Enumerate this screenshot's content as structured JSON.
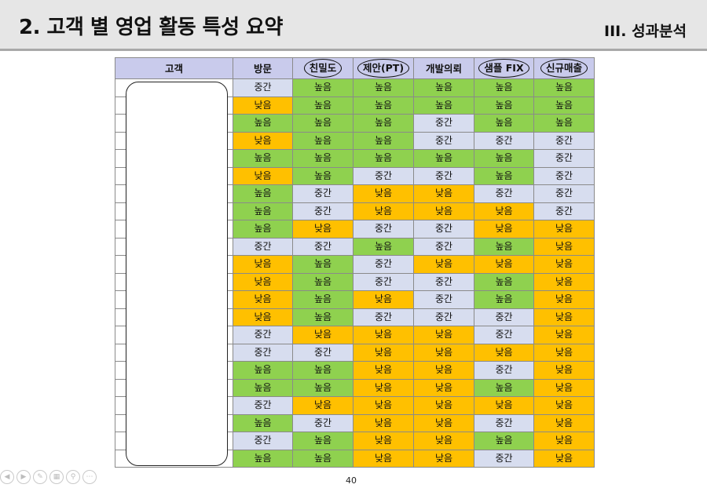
{
  "header": {
    "title": "2. 고객 별 영업 활동 특성 요약",
    "section": "III. 성과분석"
  },
  "table": {
    "columns": [
      {
        "label": "고객",
        "circled": false
      },
      {
        "label": "방문",
        "circled": false
      },
      {
        "label": "친밀도",
        "circled": true
      },
      {
        "label": "제안(PT)",
        "circled": true
      },
      {
        "label": "개발의뢰",
        "circled": false
      },
      {
        "label": "샘플 FIX",
        "circled": true
      },
      {
        "label": "신규매출",
        "circled": true
      }
    ],
    "rows": [
      [
        "중간",
        "높음",
        "높음",
        "높음",
        "높음",
        "높음"
      ],
      [
        "낮음",
        "높음",
        "높음",
        "높음",
        "높음",
        "높음"
      ],
      [
        "높음",
        "높음",
        "높음",
        "중간",
        "높음",
        "높음"
      ],
      [
        "낮음",
        "높음",
        "높음",
        "중간",
        "중간",
        "중간"
      ],
      [
        "높음",
        "높음",
        "높음",
        "높음",
        "높음",
        "중간"
      ],
      [
        "낮음",
        "높음",
        "중간",
        "중간",
        "높음",
        "중간"
      ],
      [
        "높음",
        "중간",
        "낮음",
        "낮음",
        "중간",
        "중간"
      ],
      [
        "높음",
        "중간",
        "낮음",
        "낮음",
        "낮음",
        "중간"
      ],
      [
        "높음",
        "낮음",
        "중간",
        "중간",
        "낮음",
        "낮음"
      ],
      [
        "중간",
        "중간",
        "높음",
        "중간",
        "높음",
        "낮음"
      ],
      [
        "낮음",
        "높음",
        "중간",
        "낮음",
        "낮음",
        "낮음"
      ],
      [
        "낮음",
        "높음",
        "중간",
        "중간",
        "높음",
        "낮음"
      ],
      [
        "낮음",
        "높음",
        "낮음",
        "중간",
        "높음",
        "낮음"
      ],
      [
        "낮음",
        "높음",
        "중간",
        "중간",
        "중간",
        "낮음"
      ],
      [
        "중간",
        "낮음",
        "낮음",
        "낮음",
        "중간",
        "낮음"
      ],
      [
        "중간",
        "중간",
        "낮음",
        "낮음",
        "낮음",
        "낮음"
      ],
      [
        "높음",
        "높음",
        "낮음",
        "낮음",
        "중간",
        "낮음"
      ],
      [
        "높음",
        "높음",
        "낮음",
        "낮음",
        "높음",
        "낮음"
      ],
      [
        "중간",
        "낮음",
        "낮음",
        "낮음",
        "낮음",
        "낮음"
      ],
      [
        "높음",
        "중간",
        "낮음",
        "낮음",
        "중간",
        "낮음"
      ],
      [
        "중간",
        "높음",
        "낮음",
        "낮음",
        "높음",
        "낮음"
      ],
      [
        "높음",
        "높음",
        "낮음",
        "낮음",
        "중간",
        "낮음"
      ]
    ],
    "level_colors": {
      "높음": "#8fd14f",
      "중간": "#d7ddef",
      "낮음": "#ffc000"
    }
  },
  "footer": {
    "page_number": "40"
  }
}
